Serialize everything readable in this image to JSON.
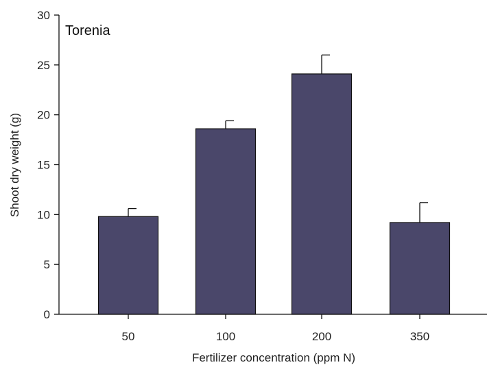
{
  "chart_data": {
    "type": "bar",
    "title": "Torenia",
    "xlabel": "Fertilizer concentration (ppm N)",
    "ylabel": "Shoot dry weight (g)",
    "categories": [
      "50",
      "100",
      "200",
      "350"
    ],
    "values": [
      9.8,
      18.6,
      24.1,
      9.2
    ],
    "error": [
      0.8,
      0.8,
      1.9,
      2.0
    ],
    "ylim": [
      0,
      30
    ],
    "yticks": [
      0,
      5,
      10,
      15,
      20,
      25,
      30
    ],
    "grid": false,
    "legend": "none",
    "bar_color": "#4a476a"
  }
}
